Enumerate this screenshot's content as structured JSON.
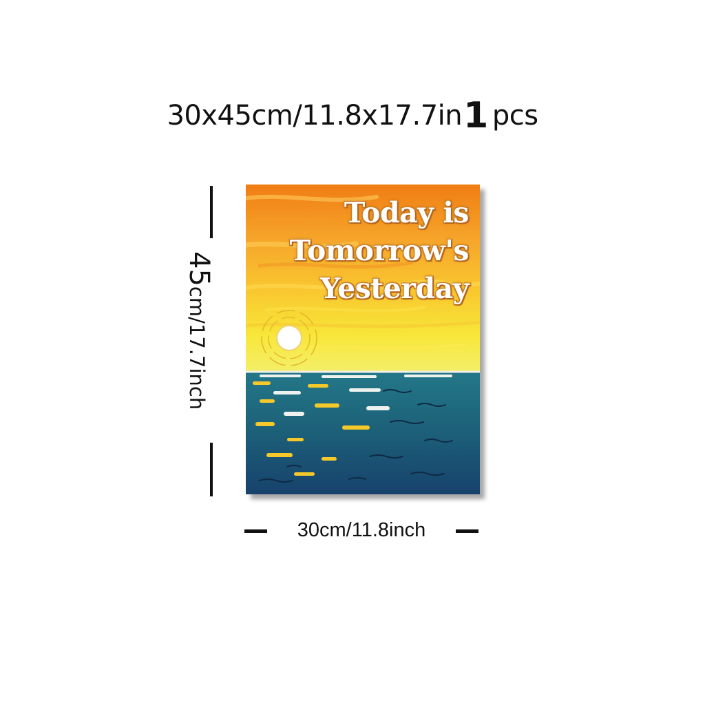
{
  "headline": {
    "size": "30x45cm/11.8x17.7in",
    "quantity": "1",
    "unit": "pcs"
  },
  "poster": {
    "quote_lines": [
      "Today is",
      "Tomorrow's",
      "Yesterday"
    ],
    "colors": {
      "sky_top": "#f28a1a",
      "sky_mid": "#f9b531",
      "sky_low": "#f8e43a",
      "sun": "#ffffff",
      "sea": "#1f6a78",
      "sea_dark": "#183f6b",
      "reflection": "#f6c92a"
    }
  },
  "dimensions": {
    "height_number": "45",
    "height_rest": "cm/17.7inch",
    "width": "30cm/11.8inch"
  }
}
